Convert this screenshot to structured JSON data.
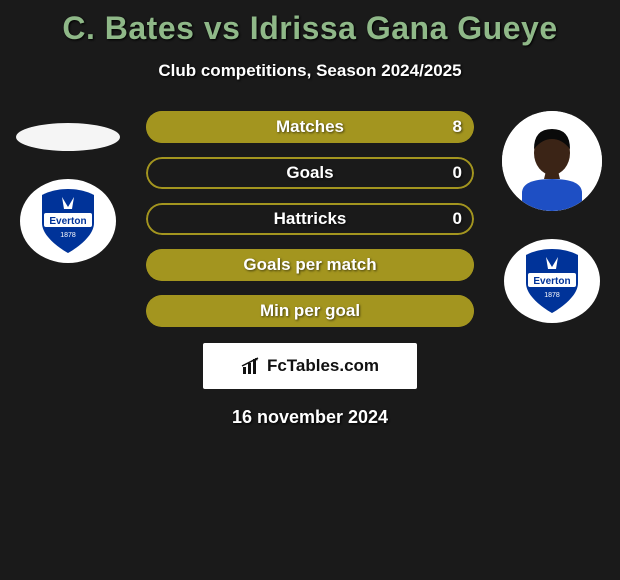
{
  "title_color": "#8fb888",
  "title_player_a": "C. Bates",
  "title_vs": "vs",
  "title_player_b": "Idrissa Gana Gueye",
  "subtitle": "Club competitions, Season 2024/2025",
  "background_color": "#1a1a1a",
  "date": "16 november 2024",
  "brand_text": "FcTables.com",
  "crest": {
    "main_color": "#003399",
    "ribbon_color": "#ffffff",
    "text": "Everton",
    "year": "1878"
  },
  "player_b_skin": "#3b2416",
  "player_b_shirt": "#1e4fc4",
  "bars": [
    {
      "label": "Matches",
      "left": null,
      "right": "8",
      "left_pct": 0,
      "right_pct": 100,
      "fill_color": "#a3951f",
      "border_color": "#a3951f"
    },
    {
      "label": "Goals",
      "left": null,
      "right": "0",
      "left_pct": 0,
      "right_pct": 0,
      "fill_color": "#a3951f",
      "border_color": "#a3951f"
    },
    {
      "label": "Hattricks",
      "left": null,
      "right": "0",
      "left_pct": 0,
      "right_pct": 0,
      "fill_color": "#a3951f",
      "border_color": "#a3951f"
    },
    {
      "label": "Goals per match",
      "left": null,
      "right": null,
      "left_pct": 100,
      "right_pct": 0,
      "fill_color": "#a3951f",
      "border_color": "#a3951f"
    },
    {
      "label": "Min per goal",
      "left": null,
      "right": null,
      "left_pct": 100,
      "right_pct": 0,
      "fill_color": "#a3951f",
      "border_color": "#a3951f"
    }
  ]
}
